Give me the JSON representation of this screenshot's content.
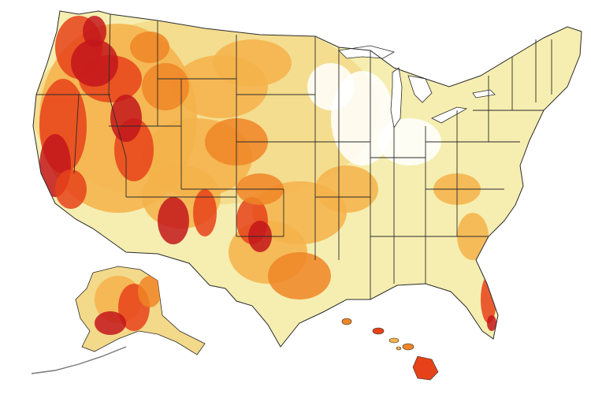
{
  "map": {
    "region": "United States",
    "features": [
      "contiguous-us",
      "alaska",
      "hawaii",
      "state-borders",
      "great-lakes"
    ],
    "legend_visible": false,
    "title_visible": false
  },
  "palette": {
    "low": "#f6eeb0",
    "low_mid": "#f3d98a",
    "mid": "#f4b24a",
    "mid_high": "#ef8526",
    "high": "#e6421a",
    "very_high": "#c3161b",
    "none": "#ffffff",
    "border": "#2b2b2b"
  }
}
